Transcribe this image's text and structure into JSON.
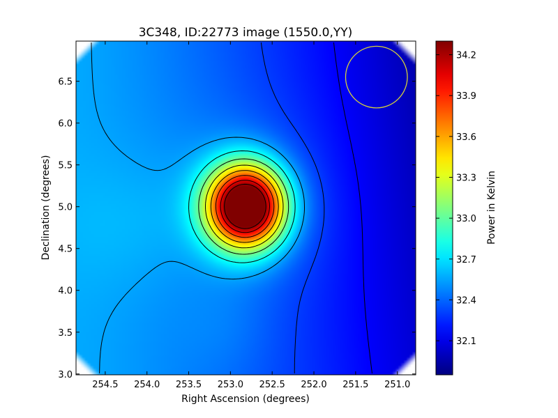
{
  "chart_data": {
    "type": "heatmap",
    "title": "3C348, ID:22773 image (1550.0,YY)",
    "xlabel": "Right Ascension (degrees)",
    "ylabel": "Declination (degrees)",
    "xlim": [
      254.85,
      250.78
    ],
    "ylim": [
      2.99,
      6.98
    ],
    "x_ticks": [
      {
        "value": 254.5,
        "label": "254.5"
      },
      {
        "value": 254.0,
        "label": "254.0"
      },
      {
        "value": 253.5,
        "label": "253.5"
      },
      {
        "value": 253.0,
        "label": "253.0"
      },
      {
        "value": 252.5,
        "label": "252.5"
      },
      {
        "value": 252.0,
        "label": "252.0"
      },
      {
        "value": 251.5,
        "label": "251.5"
      },
      {
        "value": 251.0,
        "label": "251.0"
      }
    ],
    "y_ticks": [
      {
        "value": 3.0,
        "label": "3.0"
      },
      {
        "value": 3.5,
        "label": "3.5"
      },
      {
        "value": 4.0,
        "label": "4.0"
      },
      {
        "value": 4.5,
        "label": "4.5"
      },
      {
        "value": 5.0,
        "label": "5.0"
      },
      {
        "value": 5.5,
        "label": "5.5"
      },
      {
        "value": 6.0,
        "label": "6.0"
      },
      {
        "value": 6.5,
        "label": "6.5"
      }
    ],
    "source_peak": {
      "ra": 252.78,
      "dec": 5.01
    },
    "beam_circle": {
      "ra": 251.25,
      "dec": 6.55,
      "radius_deg": 0.37,
      "color": "#d6d23a"
    },
    "colorbar": {
      "label": "Power in Kelvin",
      "range": [
        31.85,
        34.3
      ],
      "colormap": "jet",
      "ticks": [
        {
          "value": 32.1,
          "label": "32.1"
        },
        {
          "value": 32.4,
          "label": "32.4"
        },
        {
          "value": 32.7,
          "label": "32.7"
        },
        {
          "value": 33.0,
          "label": "33.0"
        },
        {
          "value": 33.3,
          "label": "33.3"
        },
        {
          "value": 33.6,
          "label": "33.6"
        },
        {
          "value": 33.9,
          "label": "33.9"
        },
        {
          "value": 34.2,
          "label": "34.2"
        }
      ]
    },
    "contour_color": "#000000"
  }
}
